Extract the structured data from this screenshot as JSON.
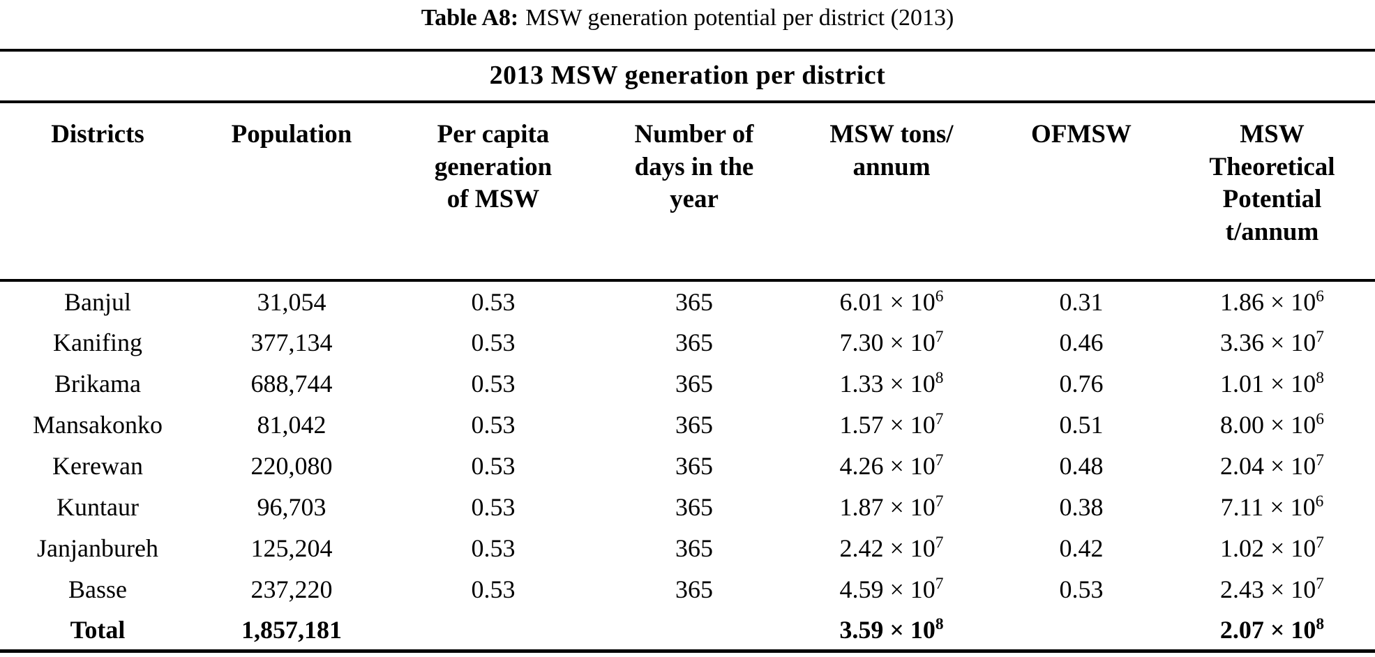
{
  "caption": {
    "label": "Table A8:",
    "text": "MSW generation potential per district (2013)"
  },
  "table": {
    "title": "2013 MSW generation per district",
    "columns": [
      {
        "id": "districts",
        "lines": [
          "Districts"
        ]
      },
      {
        "id": "population",
        "lines": [
          "Population"
        ]
      },
      {
        "id": "per-capita-generation-msw",
        "lines": [
          "Per capita",
          "generation",
          "of MSW"
        ]
      },
      {
        "id": "days-in-year",
        "lines": [
          "Number of",
          "days in the",
          "year"
        ]
      },
      {
        "id": "msw-tons-per-annum",
        "lines": [
          "MSW tons/",
          "annum"
        ]
      },
      {
        "id": "ofmsw",
        "lines": [
          "OFMSW"
        ]
      },
      {
        "id": "msw-theoretical-potential",
        "lines": [
          "MSW",
          "Theoretical",
          "Potential",
          "t/annum"
        ]
      }
    ],
    "rows": [
      {
        "bold": false,
        "cells": [
          "Banjul",
          "31,054",
          "0.53",
          "365",
          "6.01 × 10^6",
          "0.31",
          "1.86 × 10^6"
        ]
      },
      {
        "bold": false,
        "cells": [
          "Kanifing",
          "377,134",
          "0.53",
          "365",
          "7.30 × 10^7",
          "0.46",
          "3.36 × 10^7"
        ]
      },
      {
        "bold": false,
        "cells": [
          "Brikama",
          "688,744",
          "0.53",
          "365",
          "1.33 × 10^8",
          "0.76",
          "1.01 × 10^8"
        ]
      },
      {
        "bold": false,
        "cells": [
          "Mansakonko",
          "81,042",
          "0.53",
          "365",
          "1.57 × 10^7",
          "0.51",
          "8.00 × 10^6"
        ]
      },
      {
        "bold": false,
        "cells": [
          "Kerewan",
          "220,080",
          "0.53",
          "365",
          "4.26 × 10^7",
          "0.48",
          "2.04 × 10^7"
        ]
      },
      {
        "bold": false,
        "cells": [
          "Kuntaur",
          "96,703",
          "0.53",
          "365",
          "1.87 × 10^7",
          "0.38",
          "7.11 × 10^6"
        ]
      },
      {
        "bold": false,
        "cells": [
          "Janjanbureh",
          "125,204",
          "0.53",
          "365",
          "2.42 × 10^7",
          "0.42",
          "1.02 × 10^7"
        ]
      },
      {
        "bold": false,
        "cells": [
          "Basse",
          "237,220",
          "0.53",
          "365",
          "4.59 × 10^7",
          "0.53",
          "2.43 × 10^7"
        ]
      },
      {
        "bold": true,
        "cells": [
          "Total",
          "1,857,181",
          "",
          "",
          "3.59 × 10^8",
          "",
          "2.07 × 10^8"
        ]
      }
    ],
    "colors": {
      "text": "#000000",
      "background": "#ffffff",
      "rule": "#000000"
    }
  }
}
